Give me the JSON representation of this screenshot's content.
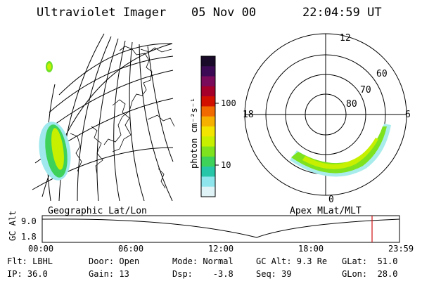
{
  "header": {
    "instrument": "Ultraviolet Imager",
    "date": "05 Nov 00",
    "time": "22:04:59 UT"
  },
  "left_panel": {
    "label": "Geographic Lat/Lon"
  },
  "colorbar": {
    "unit": "photon cm⁻²s⁻¹",
    "ticks": [
      "100",
      "10"
    ],
    "colors": [
      "#1a0a2a",
      "#3c0a55",
      "#7a0a5a",
      "#a5002a",
      "#d21000",
      "#f06a00",
      "#f6b000",
      "#f2e600",
      "#c6f000",
      "#7ee21e",
      "#3ed25a",
      "#28c6a8",
      "#8ee6ec",
      "#e0f4f7"
    ]
  },
  "right_panel": {
    "label": "Apex MLat/MLT",
    "mlt_labels": [
      "12",
      "18",
      "6",
      "0"
    ],
    "lat_labels": [
      "60",
      "70",
      "80"
    ]
  },
  "timeline": {
    "ylabel": "GC Alt",
    "y_ticks": [
      "9.0",
      "1.8"
    ],
    "x_ticks": [
      "00:00",
      "06:00",
      "12:00",
      "18:00",
      "23:59"
    ],
    "marker_color": "#d01010"
  },
  "footer": {
    "rows": [
      [
        "Flt: LBHL",
        "Door: Open",
        "Mode: Normal",
        "GC Alt: 9.3 Re",
        "GLat:  51.0"
      ],
      [
        "IP: 36.0",
        "Gain: 13",
        "Dsp:    -3.8",
        "Seq: 39",
        "GLon:  28.0"
      ]
    ]
  }
}
